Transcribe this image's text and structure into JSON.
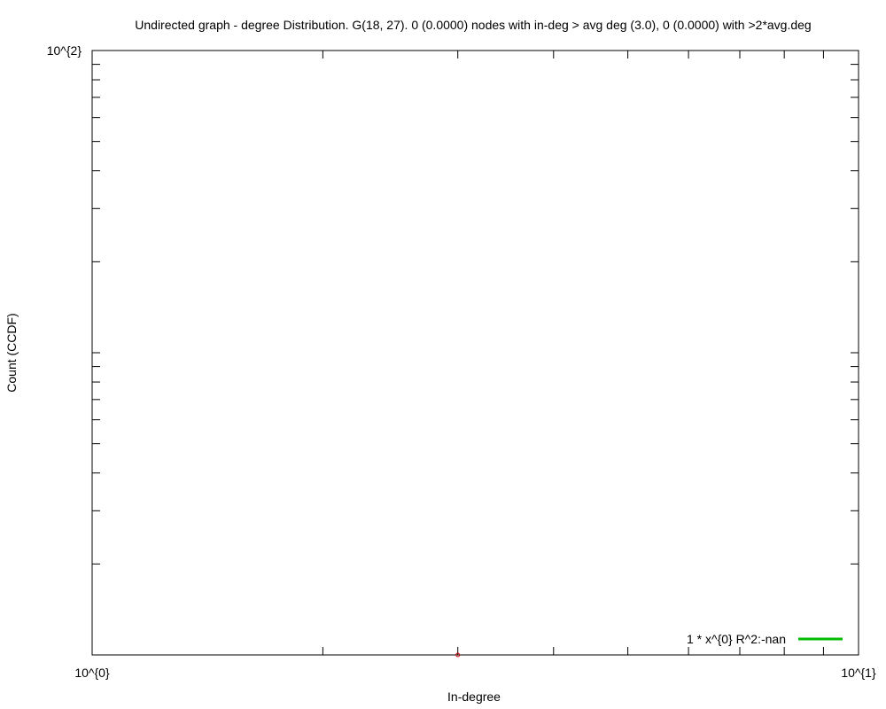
{
  "chart_data": {
    "type": "scatter",
    "title": "Undirected graph - degree Distribution. G(18, 27). 0 (0.0000) nodes with in-deg > avg deg (3.0), 0 (0.0000) with >2*avg.deg",
    "xlabel": "In-degree",
    "ylabel": "Count (CCDF)",
    "x_scale": "log",
    "y_scale": "log",
    "xlim": [
      1,
      10
    ],
    "ylim": [
      1,
      100
    ],
    "x_tick_labels": [
      {
        "value": 1,
        "label": "10^{0}"
      },
      {
        "value": 10,
        "label": "10^{1}"
      }
    ],
    "y_tick_labels": [
      {
        "value": 100,
        "label": "10^{2}"
      }
    ],
    "grid": false,
    "legend": {
      "position": "bottom-right"
    },
    "series": [
      {
        "kind": "points",
        "color": "#cc0000",
        "points": [
          {
            "x": 3,
            "y": 1
          }
        ]
      },
      {
        "kind": "fit-line",
        "name": "1 * x^{0}  R^2:-nan",
        "color": "#00bb00",
        "points": []
      }
    ]
  }
}
